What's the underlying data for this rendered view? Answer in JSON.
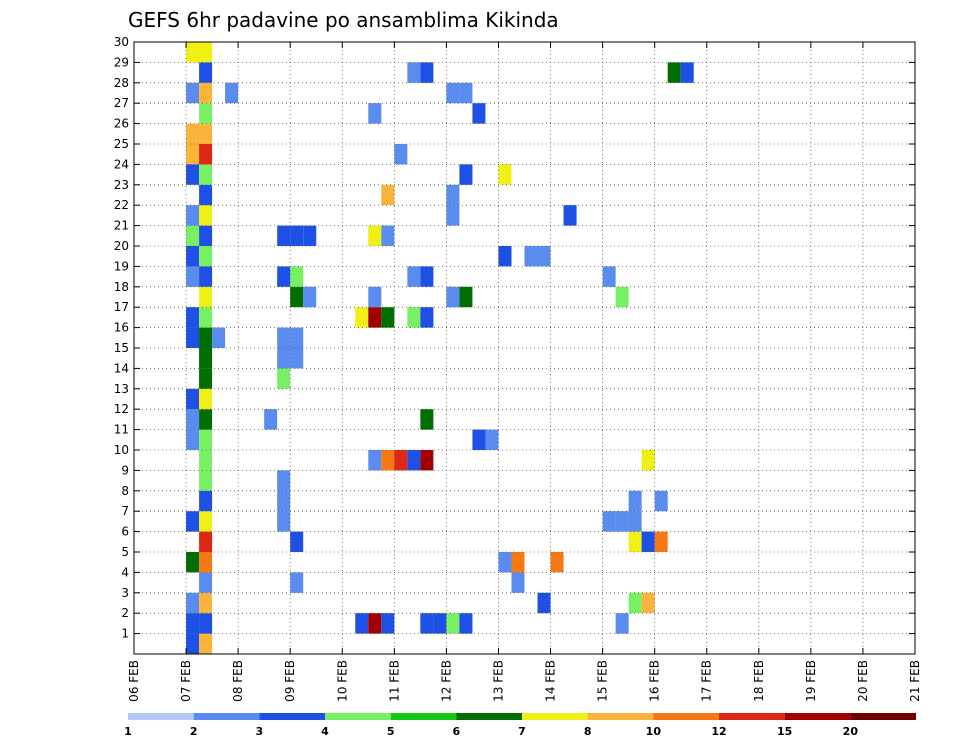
{
  "chart_data": {
    "type": "heatmap",
    "title": "GEFS 6hr padavine po ansamblima Kikinda",
    "xlabel": "",
    "ylabel": "",
    "x_unit": "6h steps from 06 FEB 00Z",
    "x_tick_labels": [
      "06 FEB",
      "07 FEB",
      "08 FEB",
      "09 FEB",
      "10 FEB",
      "11 FEB",
      "12 FEB",
      "13 FEB",
      "14 FEB",
      "15 FEB",
      "16 FEB",
      "17 FEB",
      "18 FEB",
      "19 FEB",
      "20 FEB",
      "21 FEB"
    ],
    "x_range": [
      0,
      60
    ],
    "y_tick_labels": [
      "1",
      "2",
      "3",
      "4",
      "5",
      "6",
      "7",
      "8",
      "9",
      "10",
      "11",
      "12",
      "13",
      "14",
      "15",
      "16",
      "17",
      "18",
      "19",
      "20",
      "21",
      "22",
      "23",
      "24",
      "25",
      "26",
      "27",
      "28",
      "29",
      "30"
    ],
    "y_range": [
      0,
      30
    ],
    "grid": true,
    "legend": {
      "placement": "bottom",
      "labels": [
        "1",
        "2",
        "3",
        "4",
        "5",
        "6",
        "7",
        "8",
        "10",
        "12",
        "15",
        "20"
      ],
      "colors": [
        "#b4c8f5",
        "#5a8cf0",
        "#1e50e6",
        "#78f064",
        "#14c814",
        "#006e00",
        "#f0f014",
        "#fab43c",
        "#f57814",
        "#dc2814",
        "#a00000",
        "#6e0000"
      ]
    },
    "cells": [
      [
        4,
        0,
        2
      ],
      [
        5,
        0,
        7
      ],
      [
        4,
        1,
        2
      ],
      [
        5,
        1,
        2
      ],
      [
        17,
        1,
        2
      ],
      [
        18,
        1,
        10
      ],
      [
        19,
        1,
        2
      ],
      [
        22,
        1,
        2
      ],
      [
        23,
        1,
        2
      ],
      [
        24,
        1,
        3
      ],
      [
        25,
        1,
        2
      ],
      [
        37,
        1,
        1
      ],
      [
        4,
        2,
        1
      ],
      [
        5,
        2,
        7
      ],
      [
        31,
        2,
        2
      ],
      [
        38,
        2,
        3
      ],
      [
        39,
        2,
        7
      ],
      [
        5,
        3,
        1
      ],
      [
        12,
        3,
        1
      ],
      [
        29,
        3,
        1
      ],
      [
        4,
        4,
        5
      ],
      [
        5,
        4,
        8
      ],
      [
        28,
        4,
        1
      ],
      [
        29,
        4,
        8
      ],
      [
        32,
        4,
        8
      ],
      [
        5,
        5,
        9
      ],
      [
        12,
        5,
        2
      ],
      [
        38,
        5,
        6
      ],
      [
        39,
        5,
        2
      ],
      [
        40,
        5,
        8
      ],
      [
        4,
        6,
        2
      ],
      [
        5,
        6,
        6
      ],
      [
        11,
        6,
        1
      ],
      [
        36,
        6,
        1
      ],
      [
        37,
        6,
        1
      ],
      [
        38,
        6,
        1
      ],
      [
        5,
        7,
        2
      ],
      [
        11,
        7,
        1
      ],
      [
        38,
        7,
        1
      ],
      [
        40,
        7,
        1
      ],
      [
        5,
        8,
        3
      ],
      [
        11,
        8,
        1
      ],
      [
        5,
        9,
        3
      ],
      [
        18,
        9,
        1
      ],
      [
        19,
        9,
        8
      ],
      [
        20,
        9,
        9
      ],
      [
        21,
        9,
        2
      ],
      [
        22,
        9,
        10
      ],
      [
        39,
        9,
        6
      ],
      [
        4,
        10,
        1
      ],
      [
        5,
        10,
        3
      ],
      [
        26,
        10,
        2
      ],
      [
        27,
        10,
        1
      ],
      [
        4,
        11,
        1
      ],
      [
        5,
        11,
        5
      ],
      [
        10,
        11,
        1
      ],
      [
        22,
        11,
        5
      ],
      [
        4,
        12,
        2
      ],
      [
        5,
        12,
        6
      ],
      [
        5,
        13,
        5
      ],
      [
        11,
        13,
        3
      ],
      [
        5,
        14,
        5
      ],
      [
        11,
        14,
        1
      ],
      [
        12,
        14,
        1
      ],
      [
        4,
        15,
        2
      ],
      [
        5,
        15,
        5
      ],
      [
        6,
        15,
        1
      ],
      [
        11,
        15,
        1
      ],
      [
        12,
        15,
        1
      ],
      [
        4,
        16,
        2
      ],
      [
        5,
        16,
        3
      ],
      [
        17,
        16,
        6
      ],
      [
        18,
        16,
        10
      ],
      [
        19,
        16,
        5
      ],
      [
        21,
        16,
        3
      ],
      [
        22,
        16,
        2
      ],
      [
        5,
        17,
        6
      ],
      [
        12,
        17,
        5
      ],
      [
        13,
        17,
        1
      ],
      [
        18,
        17,
        1
      ],
      [
        24,
        17,
        1
      ],
      [
        25,
        17,
        5
      ],
      [
        37,
        17,
        3
      ],
      [
        4,
        18,
        1
      ],
      [
        5,
        18,
        2
      ],
      [
        11,
        18,
        2
      ],
      [
        12,
        18,
        3
      ],
      [
        21,
        18,
        1
      ],
      [
        22,
        18,
        2
      ],
      [
        36,
        18,
        1
      ],
      [
        4,
        19,
        2
      ],
      [
        5,
        19,
        3
      ],
      [
        28,
        19,
        2
      ],
      [
        30,
        19,
        1
      ],
      [
        31,
        19,
        1
      ],
      [
        4,
        20,
        3
      ],
      [
        5,
        20,
        2
      ],
      [
        11,
        20,
        2
      ],
      [
        12,
        20,
        2
      ],
      [
        13,
        20,
        2
      ],
      [
        18,
        20,
        6
      ],
      [
        19,
        20,
        1
      ],
      [
        4,
        21,
        1
      ],
      [
        5,
        21,
        6
      ],
      [
        24,
        21,
        1
      ],
      [
        33,
        21,
        2
      ],
      [
        5,
        22,
        2
      ],
      [
        19,
        22,
        7
      ],
      [
        24,
        22,
        1
      ],
      [
        4,
        23,
        2
      ],
      [
        5,
        23,
        3
      ],
      [
        25,
        23,
        2
      ],
      [
        28,
        23,
        6
      ],
      [
        4,
        24,
        7
      ],
      [
        5,
        24,
        9
      ],
      [
        20,
        24,
        1
      ],
      [
        4,
        25,
        7
      ],
      [
        5,
        25,
        7
      ],
      [
        5,
        26,
        3
      ],
      [
        18,
        26,
        1
      ],
      [
        26,
        26,
        2
      ],
      [
        4,
        27,
        1
      ],
      [
        5,
        27,
        7
      ],
      [
        7,
        27,
        1
      ],
      [
        24,
        27,
        1
      ],
      [
        25,
        27,
        1
      ],
      [
        5,
        28,
        2
      ],
      [
        21,
        28,
        1
      ],
      [
        22,
        28,
        2
      ],
      [
        41,
        28,
        5
      ],
      [
        42,
        28,
        2
      ],
      [
        4,
        29,
        6
      ],
      [
        5,
        29,
        6
      ]
    ]
  }
}
